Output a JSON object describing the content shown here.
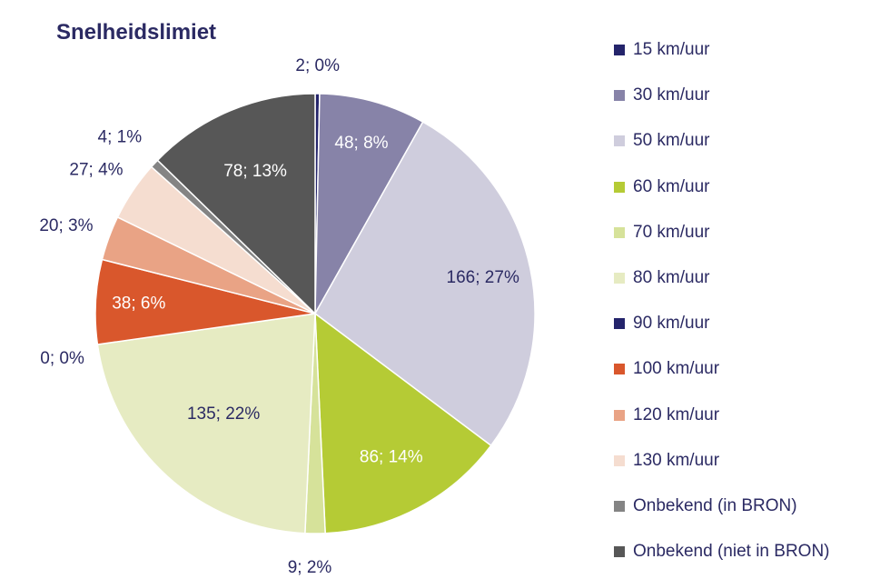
{
  "chart_data": {
    "type": "pie",
    "title": "Snelheidslimiet",
    "legend_position": "right",
    "slices": [
      {
        "name": "15 km/uur",
        "value": 2,
        "percent": "0%",
        "label": "2; 0%",
        "color": "#24246b"
      },
      {
        "name": "30 km/uur",
        "value": 48,
        "percent": "8%",
        "label": "48; 8%",
        "color": "#8783a8"
      },
      {
        "name": "50 km/uur",
        "value": 166,
        "percent": "27%",
        "label": "166; 27%",
        "color": "#cfcddd"
      },
      {
        "name": "60 km/uur",
        "value": 86,
        "percent": "14%",
        "label": "86; 14%",
        "color": "#b5cb35"
      },
      {
        "name": "70 km/uur",
        "value": 9,
        "percent": "2%",
        "label": "9; 2%",
        "color": "#d6e29a"
      },
      {
        "name": "80 km/uur",
        "value": 135,
        "percent": "22%",
        "label": "135; 22%",
        "color": "#e6ebc2"
      },
      {
        "name": "90 km/uur",
        "value": 0,
        "percent": "0%",
        "label": "0; 0%",
        "color": "#24246b"
      },
      {
        "name": "100 km/uur",
        "value": 38,
        "percent": "6%",
        "label": "38; 6%",
        "color": "#d9572c"
      },
      {
        "name": "120 km/uur",
        "value": 20,
        "percent": "3%",
        "label": "20; 3%",
        "color": "#e9a385"
      },
      {
        "name": "130 km/uur",
        "value": 27,
        "percent": "4%",
        "label": "27; 4%",
        "color": "#f5ddd0"
      },
      {
        "name": "Onbekend (in BRON)",
        "value": 4,
        "percent": "1%",
        "label": "4; 1%",
        "color": "#848484"
      },
      {
        "name": "Onbekend (niet in BRON)",
        "value": 78,
        "percent": "13%",
        "label": "78; 13%",
        "color": "#575757"
      }
    ]
  }
}
